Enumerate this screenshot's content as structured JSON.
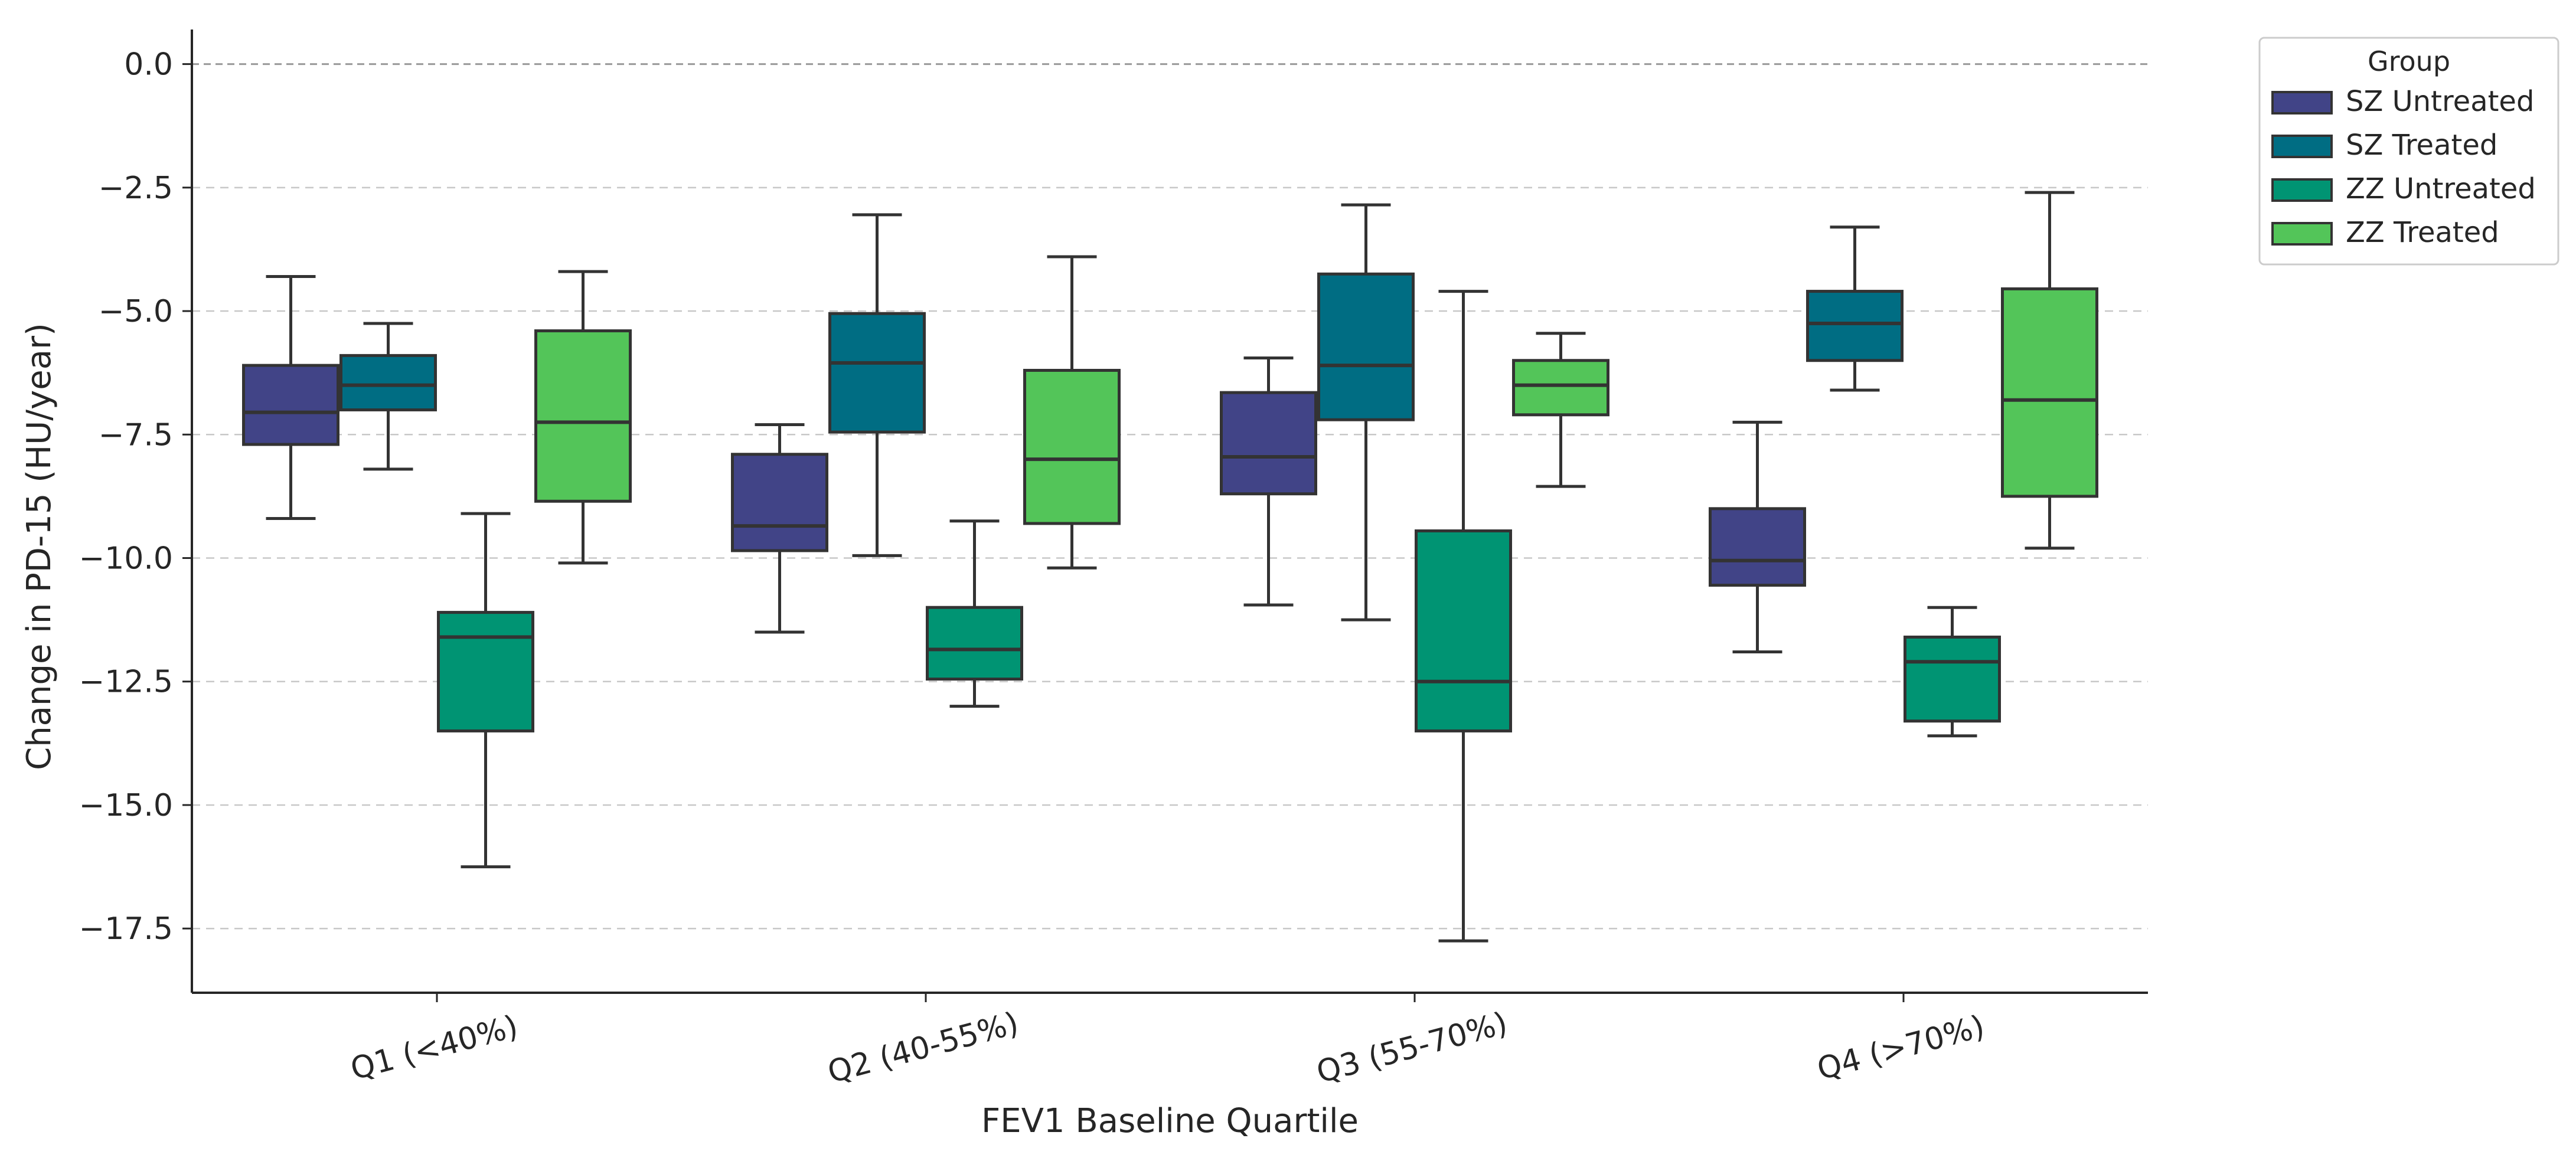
{
  "chart_data": {
    "type": "boxplot",
    "xlabel": "FEV1 Baseline Quartile",
    "ylabel": "Change in PD-15 (HU/year)",
    "categories": [
      "Q1 (<40%)",
      "Q2 (40-55%)",
      "Q3 (55-70%)",
      "Q4 (>70%)"
    ],
    "ylim": [
      -18.8,
      0.7
    ],
    "yticks": [
      0.0,
      -2.5,
      -5.0,
      -7.5,
      -10.0,
      -12.5,
      -15.0,
      -17.5
    ],
    "ytick_labels": [
      "0.0",
      "−2.5",
      "−5.0",
      "−7.5",
      "−10.0",
      "−12.5",
      "−15.0",
      "−17.5"
    ],
    "grid": "horizontal dashed",
    "reference_line": 0.0,
    "legend": {
      "title": "Group",
      "placement": "outside-top-right",
      "entries": [
        "SZ Untreated",
        "SZ Treated",
        "ZZ Untreated",
        "ZZ Treated"
      ]
    },
    "series": [
      {
        "name": "SZ Untreated",
        "color": "#414487",
        "boxes": [
          {
            "whislo": -9.2,
            "q1": -7.7,
            "med": -7.05,
            "q3": -6.1,
            "whishi": -4.3
          },
          {
            "whislo": -11.5,
            "q1": -9.85,
            "med": -9.35,
            "q3": -7.9,
            "whishi": -7.3
          },
          {
            "whislo": -10.95,
            "q1": -8.7,
            "med": -7.95,
            "q3": -6.65,
            "whishi": -5.95
          },
          {
            "whislo": -11.9,
            "q1": -10.55,
            "med": -10.05,
            "q3": -9.0,
            "whishi": -7.25
          }
        ]
      },
      {
        "name": "SZ Treated",
        "color": "#006D83",
        "boxes": [
          {
            "whislo": -8.2,
            "q1": -7.0,
            "med": -6.5,
            "q3": -5.9,
            "whishi": -5.25
          },
          {
            "whislo": -9.95,
            "q1": -7.45,
            "med": -6.05,
            "q3": -5.05,
            "whishi": -3.05
          },
          {
            "whislo": -11.25,
            "q1": -7.2,
            "med": -6.1,
            "q3": -4.25,
            "whishi": -2.85
          },
          {
            "whislo": -6.6,
            "q1": -6.0,
            "med": -5.25,
            "q3": -4.6,
            "whishi": -3.3
          }
        ]
      },
      {
        "name": "ZZ Untreated",
        "color": "#009473",
        "boxes": [
          {
            "whislo": -16.25,
            "q1": -13.5,
            "med": -11.6,
            "q3": -11.1,
            "whishi": -9.1
          },
          {
            "whislo": -13.0,
            "q1": -12.45,
            "med": -11.85,
            "q3": -11.0,
            "whishi": -9.25
          },
          {
            "whislo": -17.75,
            "q1": -13.5,
            "med": -12.5,
            "q3": -9.45,
            "whishi": -4.6
          },
          {
            "whislo": -13.6,
            "q1": -13.3,
            "med": -12.1,
            "q3": -11.6,
            "whishi": -11.0
          }
        ]
      },
      {
        "name": "ZZ Treated",
        "color": "#53C559",
        "boxes": [
          {
            "whislo": -10.1,
            "q1": -8.85,
            "med": -7.25,
            "q3": -5.4,
            "whishi": -4.2
          },
          {
            "whislo": -10.2,
            "q1": -9.3,
            "med": -8.0,
            "q3": -6.2,
            "whishi": -3.9
          },
          {
            "whislo": -8.55,
            "q1": -7.1,
            "med": -6.5,
            "q3": -6.0,
            "whishi": -5.45
          },
          {
            "whislo": -9.8,
            "q1": -8.75,
            "med": -6.8,
            "q3": -4.55,
            "whishi": -2.6
          }
        ]
      }
    ]
  }
}
